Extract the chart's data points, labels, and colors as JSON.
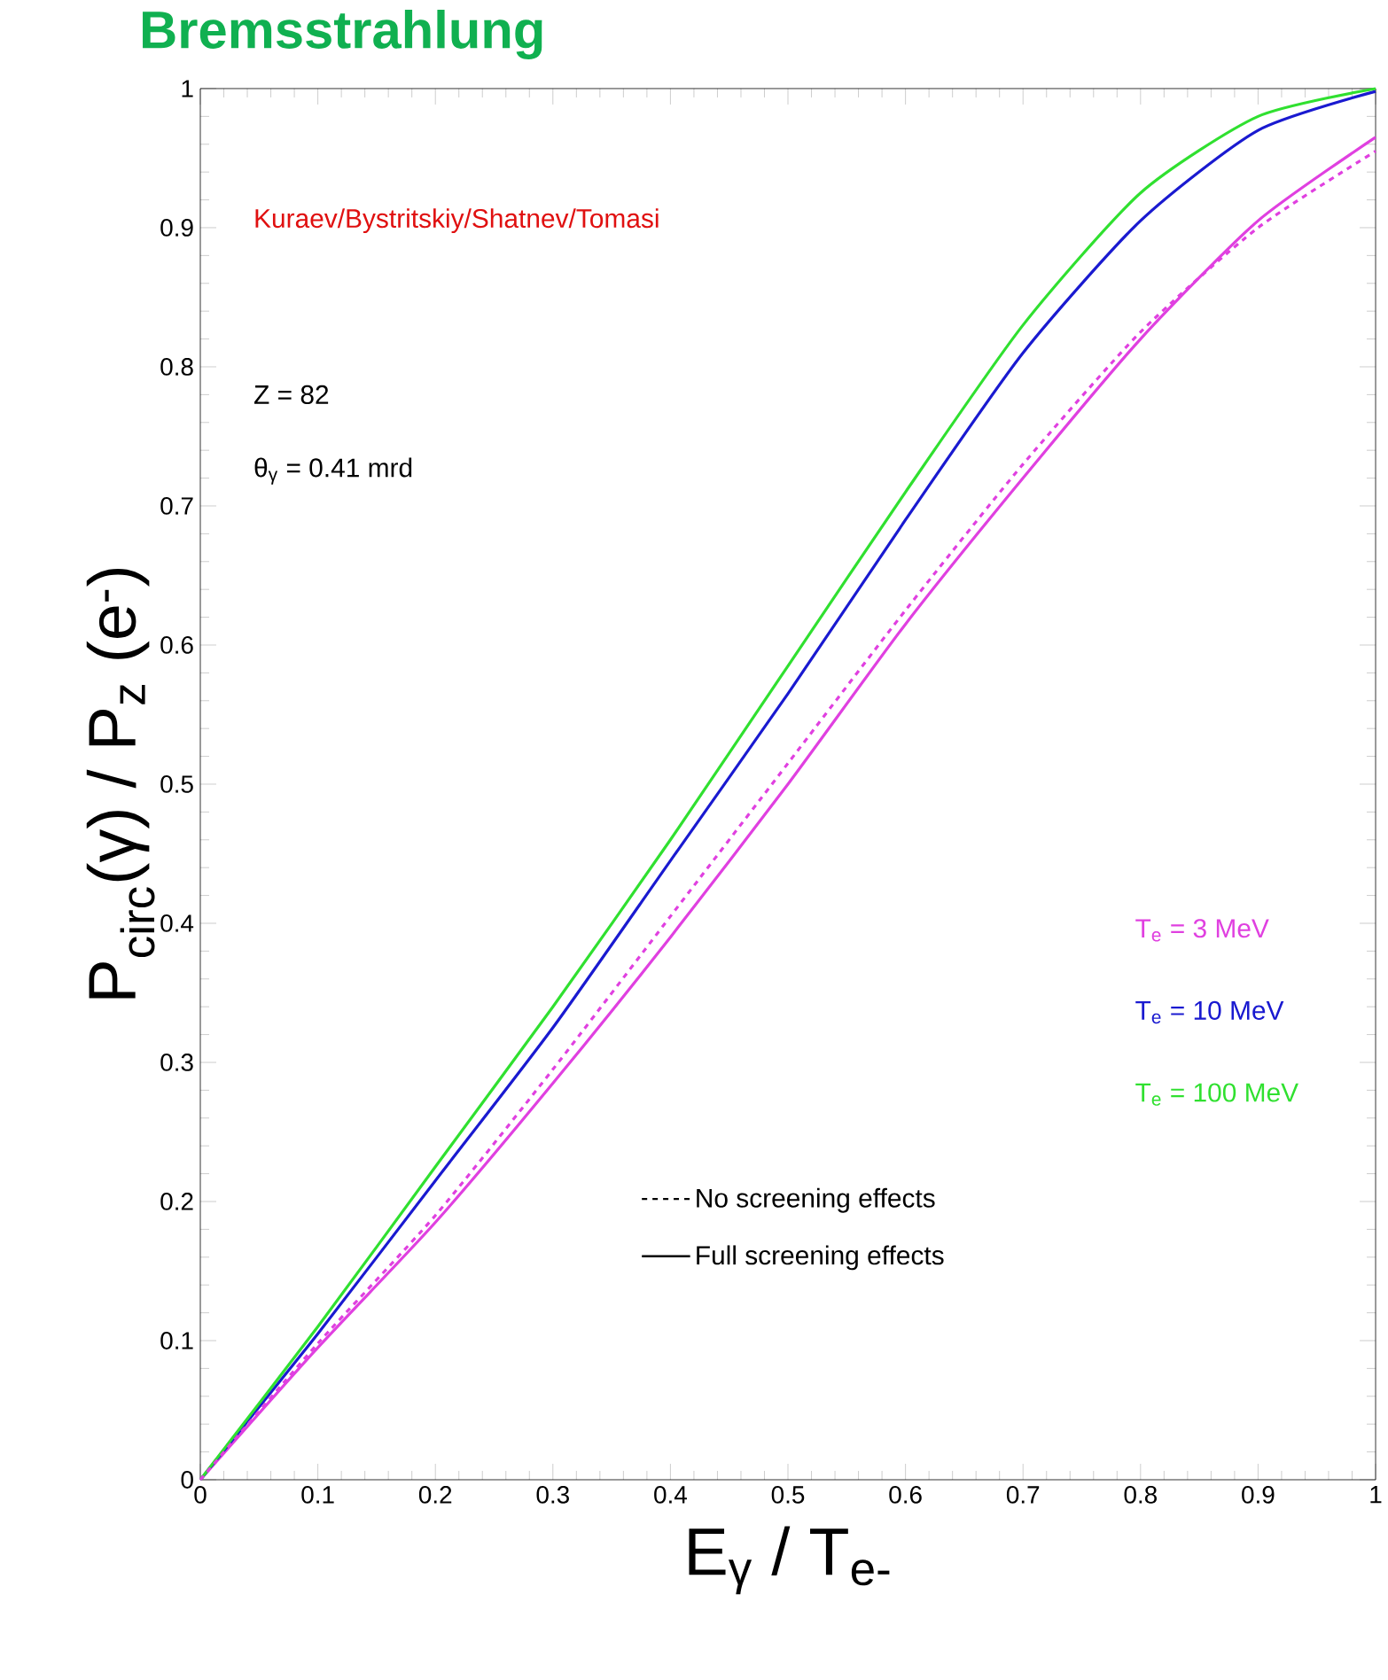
{
  "chart_data": {
    "type": "line",
    "title": "Bremsstrahlung",
    "xlabel": "E$_{γ}$ / T$_{e-}$",
    "ylabel": "P$_{circ}$(γ) / P$_{z}$ (e$^{-}$)",
    "x": [
      0,
      0.1,
      0.2,
      0.3,
      0.4,
      0.5,
      0.6,
      0.7,
      0.8,
      0.9,
      1.0
    ],
    "series": [
      {
        "name": "T$_{e}$ = 3 MeV",
        "color": "#e040e0",
        "line_style": "solid",
        "values": [
          0,
          0.095,
          0.185,
          0.285,
          0.39,
          0.5,
          0.615,
          0.72,
          0.82,
          0.905,
          0.965
        ]
      },
      {
        "name": "T$_{e}$ = 10 MeV",
        "color": "#1a1ad0",
        "line_style": "solid",
        "values": [
          0,
          0.105,
          0.215,
          0.325,
          0.445,
          0.565,
          0.69,
          0.81,
          0.905,
          0.97,
          0.998
        ]
      },
      {
        "name": "T$_{e}$ = 100 MeV",
        "color": "#30e030",
        "line_style": "solid",
        "values": [
          0,
          0.11,
          0.225,
          0.34,
          0.46,
          0.585,
          0.71,
          0.83,
          0.925,
          0.98,
          1.0
        ]
      },
      {
        "color": "#e040e0",
        "line_style": "dashed",
        "values": [
          0,
          0.098,
          0.19,
          0.295,
          0.405,
          0.515,
          0.625,
          0.73,
          0.825,
          0.9,
          0.955
        ]
      }
    ],
    "annotations": [
      "Kuraev/Bystritskiy/Shatnev/Tomasi",
      "Z = 82",
      "θ$_{γ}$ = 0.41 mrd",
      "No screening effects",
      "Full screening effects"
    ],
    "xlim": [
      0,
      1
    ],
    "ylim": [
      0,
      1
    ],
    "xticks": [
      0,
      0.1,
      0.2,
      0.3,
      0.4,
      0.5,
      0.6,
      0.7,
      0.8,
      0.9,
      1
    ],
    "yticks": [
      0,
      0.1,
      0.2,
      0.3,
      0.4,
      0.5,
      0.6,
      0.7,
      0.8,
      0.9,
      1
    ],
    "grid": false,
    "marker": "none"
  }
}
